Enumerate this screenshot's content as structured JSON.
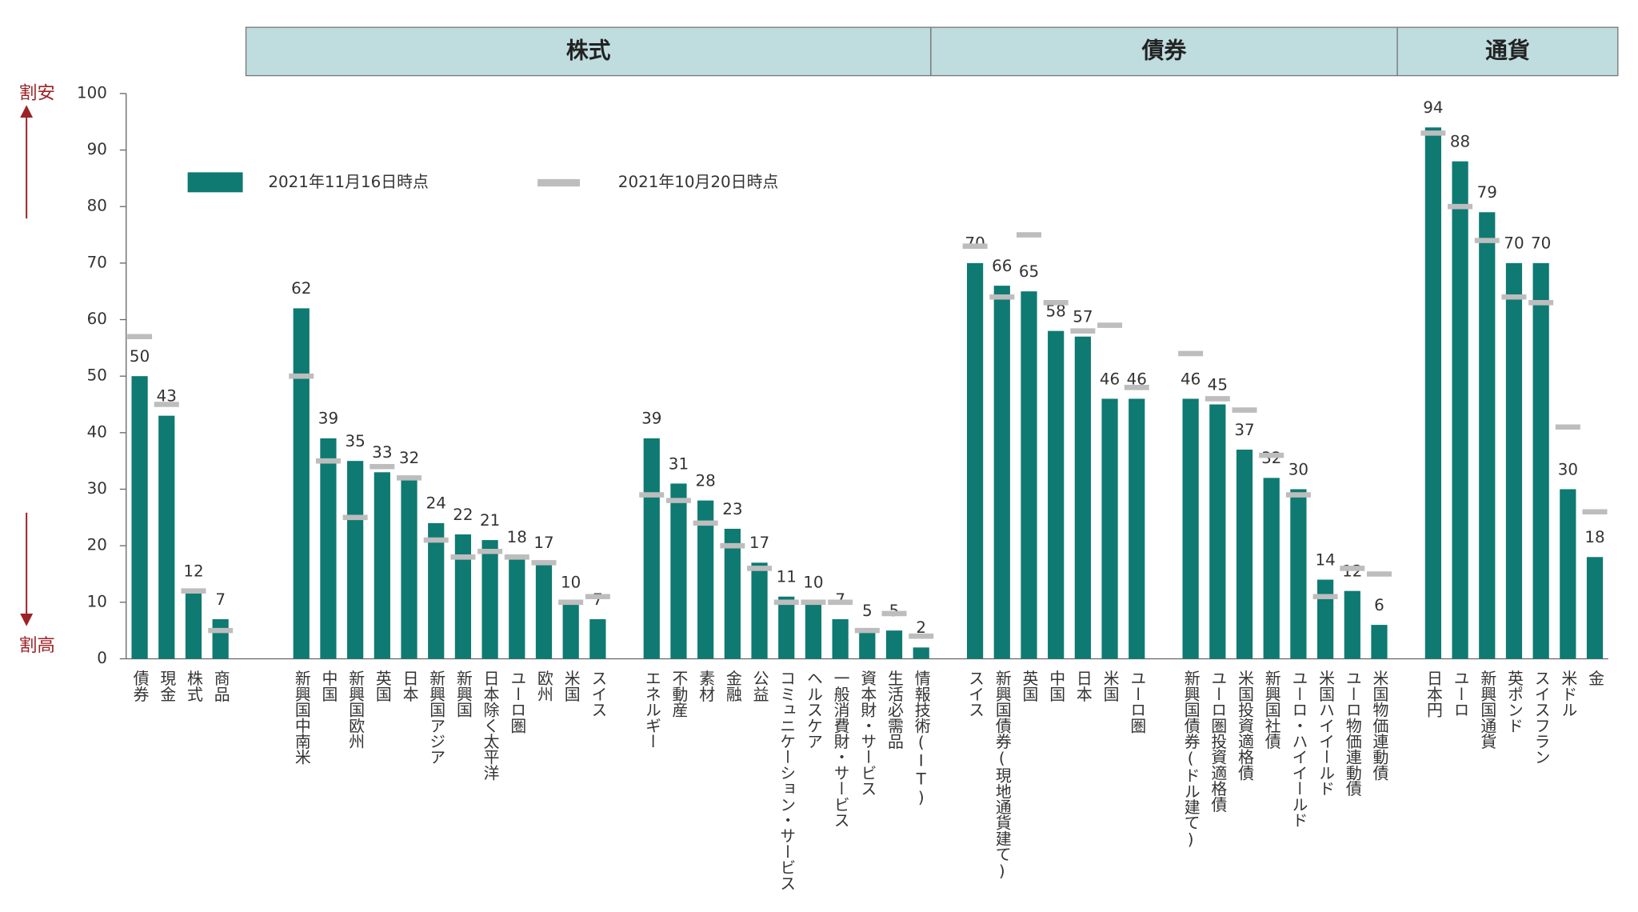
{
  "chart_data": {
    "type": "bar",
    "section_headers": [
      "株式",
      "債券",
      "通貨"
    ],
    "cheap_label": "割安",
    "expensive_label": "割高",
    "categories": [
      "債券",
      "現金",
      "株式",
      "商品",
      null,
      null,
      "新興国中南米",
      "中国",
      "新興国欧州",
      "英国",
      "日本",
      "新興国アジア",
      "新興国",
      "日本除く太平洋",
      "ユーロ圏",
      "欧州",
      "米国",
      "スイス",
      null,
      "エネルギー",
      "不動産",
      "素材",
      "金融",
      "公益",
      "コミュニケーション・サービス",
      "ヘルスケア",
      "一般消費財・サービス",
      "資本財・サービス",
      "生活必需品",
      "情報技術(IT)",
      null,
      "スイス",
      "新興国債券(現地通貨建て)",
      "英国",
      "中国",
      "日本",
      "米国",
      "ユーロ圏",
      null,
      "新興国債券(ドル建て)",
      "ユーロ圏投資適格債",
      "米国投資適格債",
      "新興国社債",
      "ユーロ・ハイイールド",
      "米国ハイイールド",
      "ユーロ物価連動債",
      "米国物価連動債",
      null,
      "日本円",
      "ユーロ",
      "新興国通貨",
      "英ポンド",
      "スイスフラン",
      "米ドル",
      "金"
    ],
    "series": [
      {
        "name": "2021年11月16日時点",
        "color": "#0e7a72",
        "style": "bar",
        "values": [
          50,
          43,
          12,
          7,
          null,
          null,
          62,
          39,
          35,
          33,
          32,
          24,
          22,
          21,
          18,
          17,
          10,
          7,
          null,
          39,
          31,
          28,
          23,
          17,
          11,
          10,
          7,
          5,
          5,
          2,
          null,
          70,
          66,
          65,
          58,
          57,
          46,
          46,
          null,
          46,
          45,
          37,
          32,
          30,
          14,
          12,
          6,
          null,
          94,
          88,
          79,
          70,
          70,
          30,
          18
        ]
      },
      {
        "name": "2021年10月20日時点",
        "color": "#bdbdbd",
        "style": "dash",
        "values": [
          57,
          45,
          12,
          5,
          null,
          null,
          50,
          35,
          25,
          34,
          32,
          21,
          18,
          19,
          18,
          17,
          10,
          11,
          null,
          29,
          28,
          24,
          20,
          16,
          10,
          10,
          10,
          5,
          8,
          4,
          null,
          73,
          64,
          75,
          63,
          58,
          59,
          48,
          null,
          54,
          46,
          44,
          36,
          29,
          11,
          16,
          15,
          null,
          93,
          80,
          74,
          64,
          63,
          41,
          26
        ]
      }
    ],
    "ylim": [
      0,
      100
    ],
    "yticks": [
      0,
      10,
      20,
      30,
      40,
      50,
      60,
      70,
      80,
      90,
      100
    ],
    "grid": false
  }
}
